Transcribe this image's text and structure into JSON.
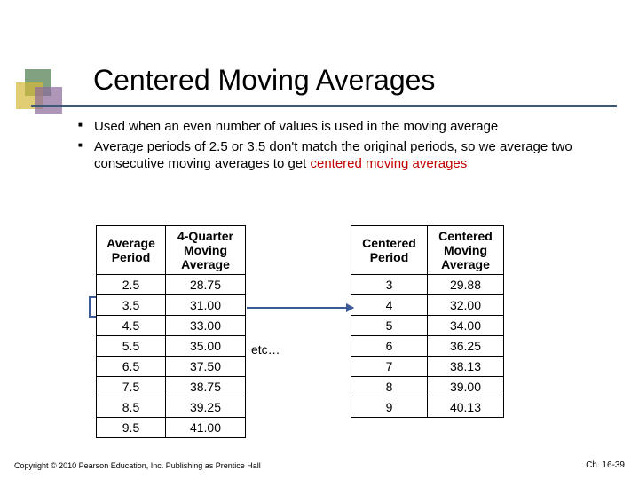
{
  "title": "Centered Moving Averages",
  "bullets": [
    "Used when an even number of values is used in the moving average",
    "Average periods of 2.5 or 3.5 don't match the original periods, so we average two consecutive moving averages to get <span class=\"hl\">centered moving averages</span>"
  ],
  "table1": {
    "headers": [
      "Average Period",
      "4-Quarter Moving Average"
    ],
    "rows": [
      [
        "2.5",
        "28.75"
      ],
      [
        "3.5",
        "31.00"
      ],
      [
        "4.5",
        "33.00"
      ],
      [
        "5.5",
        "35.00"
      ],
      [
        "6.5",
        "37.50"
      ],
      [
        "7.5",
        "38.75"
      ],
      [
        "8.5",
        "39.25"
      ],
      [
        "9.5",
        "41.00"
      ]
    ]
  },
  "table2": {
    "headers": [
      "Centered Period",
      "Centered Moving Average"
    ],
    "rows": [
      [
        "3",
        "29.88"
      ],
      [
        "4",
        "32.00"
      ],
      [
        "5",
        "34.00"
      ],
      [
        "6",
        "36.25"
      ],
      [
        "7",
        "38.13"
      ],
      [
        "8",
        "39.00"
      ],
      [
        "9",
        "40.13"
      ]
    ]
  },
  "etc": "etc…",
  "footer_left": "Copyright © 2010 Pearson Education, Inc. Publishing as Prentice Hall",
  "footer_right": "Ch. 16-39",
  "colors": {
    "rule": "#3a5a78",
    "highlight": "#c00000",
    "bracket1": "#b03060",
    "bracket2": "#3a5a9a"
  }
}
